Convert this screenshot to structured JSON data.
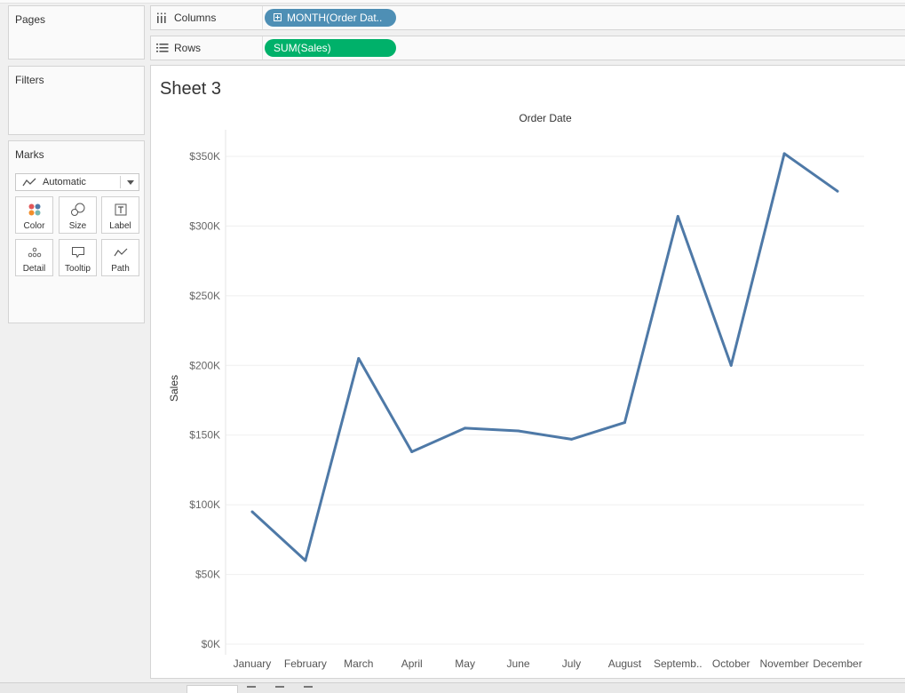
{
  "panels": {
    "pages": {
      "title": "Pages"
    },
    "filters": {
      "title": "Filters"
    },
    "marks": {
      "title": "Marks",
      "mark_type": "Automatic",
      "buttons": [
        {
          "label": "Color",
          "icon": "color-icon"
        },
        {
          "label": "Size",
          "icon": "size-icon"
        },
        {
          "label": "Label",
          "icon": "label-icon"
        },
        {
          "label": "Detail",
          "icon": "detail-icon"
        },
        {
          "label": "Tooltip",
          "icon": "tooltip-icon"
        },
        {
          "label": "Path",
          "icon": "path-icon"
        }
      ]
    }
  },
  "shelves": {
    "columns": {
      "label": "Columns",
      "pill": "MONTH(Order Dat..",
      "pill_color": "#4e8fb5"
    },
    "rows": {
      "label": "Rows",
      "pill": "SUM(Sales)",
      "pill_color": "#00b16a"
    }
  },
  "sheet": {
    "title": "Sheet 3"
  },
  "chart_data": {
    "type": "line",
    "title": "Order Date",
    "xlabel": "",
    "ylabel": "Sales",
    "categories": [
      "January",
      "February",
      "March",
      "April",
      "May",
      "June",
      "July",
      "August",
      "Septemb..",
      "October",
      "November",
      "December"
    ],
    "values": [
      95000,
      60000,
      205000,
      138000,
      155000,
      153000,
      147000,
      159000,
      307000,
      200000,
      352000,
      325000
    ],
    "ylim": [
      0,
      350000
    ],
    "yticks": [
      0,
      50000,
      100000,
      150000,
      200000,
      250000,
      300000,
      350000
    ],
    "ytick_labels": [
      "$0K",
      "$50K",
      "$100K",
      "$150K",
      "$200K",
      "$250K",
      "$300K",
      "$350K"
    ],
    "line_color": "#4e79a7",
    "grid": true,
    "legend": "none"
  }
}
